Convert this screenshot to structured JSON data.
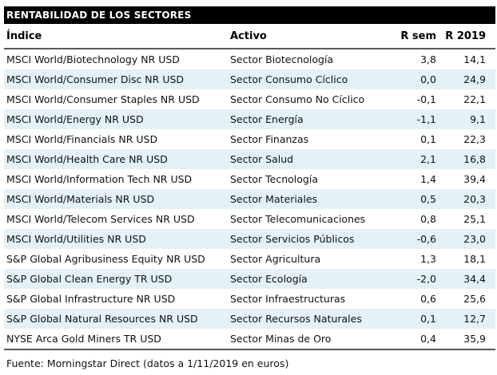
{
  "colors": {
    "title_bg": "#000000",
    "title_fg": "#ffffff",
    "row_alt_bg": "#e4f1f6",
    "divider": "#5a5a5a",
    "text": "#111111"
  },
  "chart_data": {
    "type": "table",
    "title": "RENTABILIDAD DE LOS SECTORES",
    "columns": [
      "Índice",
      "Activo",
      "R sem",
      "R 2019"
    ],
    "rows": [
      {
        "indice": "MSCI World/Biotechnology NR USD",
        "activo": "Sector Biotecnología",
        "r_sem": "3,8",
        "r_2019": "14,1"
      },
      {
        "indice": "MSCI World/Consumer Disc NR USD",
        "activo": "Sector Consumo Cíclico",
        "r_sem": "0,0",
        "r_2019": "24,9"
      },
      {
        "indice": "MSCI World/Consumer Staples NR USD",
        "activo": "Sector Consumo No Cíclico",
        "r_sem": "-0,1",
        "r_2019": "22,1"
      },
      {
        "indice": "MSCI World/Energy NR USD",
        "activo": "Sector Energía",
        "r_sem": "-1,1",
        "r_2019": "9,1"
      },
      {
        "indice": "MSCI World/Financials NR USD",
        "activo": "Sector Finanzas",
        "r_sem": "0,1",
        "r_2019": "22,3"
      },
      {
        "indice": "MSCI World/Health Care NR USD",
        "activo": "Sector Salud",
        "r_sem": "2,1",
        "r_2019": "16,8"
      },
      {
        "indice": "MSCI World/Information Tech NR USD",
        "activo": "Sector Tecnología",
        "r_sem": "1,4",
        "r_2019": "39,4"
      },
      {
        "indice": "MSCI World/Materials NR USD",
        "activo": "Sector Materiales",
        "r_sem": "0,5",
        "r_2019": "20,3"
      },
      {
        "indice": "MSCI World/Telecom Services NR USD",
        "activo": "Sector Telecomunicaciones",
        "r_sem": "0,8",
        "r_2019": "25,1"
      },
      {
        "indice": "MSCI World/Utilities NR USD",
        "activo": "Sector Servicios Públicos",
        "r_sem": "-0,6",
        "r_2019": "23,0"
      },
      {
        "indice": "S&P Global Agribusiness Equity NR USD",
        "activo": "Sector Agricultura",
        "r_sem": "1,3",
        "r_2019": "18,1"
      },
      {
        "indice": "S&P Global Clean Energy TR USD",
        "activo": "Sector Ecología",
        "r_sem": "-2,0",
        "r_2019": "34,4"
      },
      {
        "indice": "S&P Global Infrastructure NR USD",
        "activo": "Sector Infraestructuras",
        "r_sem": "0,6",
        "r_2019": "25,6"
      },
      {
        "indice": "S&P Global Natural Resources NR USD",
        "activo": "Sector Recursos Naturales",
        "r_sem": "0,1",
        "r_2019": "12,7"
      },
      {
        "indice": "NYSE Arca Gold Miners TR USD",
        "activo": "Sector Minas de Oro",
        "r_sem": "0,4",
        "r_2019": "35,9"
      }
    ],
    "source": "Fuente: Morningstar Direct (datos a 1/11/2019 en euros)"
  }
}
